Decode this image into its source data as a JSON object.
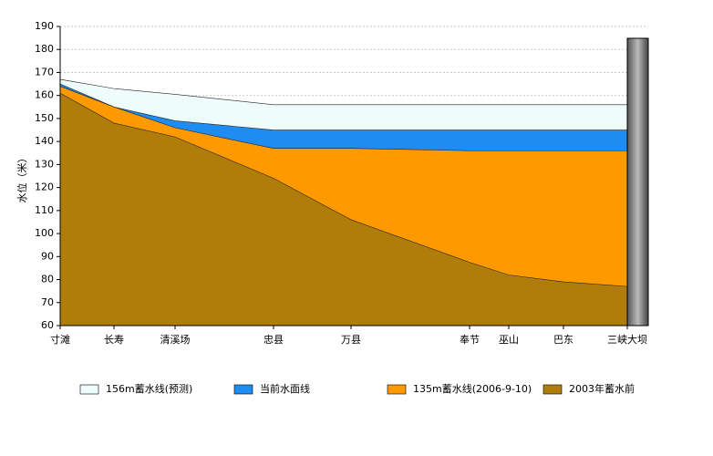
{
  "chart_data": {
    "type": "area",
    "y_label": "水位（米）",
    "categories": [
      "寸滩",
      "长寿",
      "清溪场",
      "忠县",
      "万县",
      "奉节",
      "巫山",
      "巴东",
      "三峡大坝"
    ],
    "series": [
      {
        "name": "156m蓄水线(预测)",
        "color": "#eefcfc",
        "values": [
          167,
          163,
          160.5,
          156,
          156,
          156,
          156,
          156,
          156
        ]
      },
      {
        "name": "当前水面线",
        "color": "#1e8cf0",
        "values": [
          165,
          155,
          149,
          145,
          145,
          145,
          145,
          145,
          145
        ]
      },
      {
        "name": "135m蓄水线(2006-9-10)",
        "color": "#ff9900",
        "values": [
          164,
          155,
          146,
          137,
          137,
          136,
          136,
          136,
          136
        ]
      },
      {
        "name": "2003年蓄水前",
        "color": "#b07d0b",
        "values": [
          161,
          148,
          142,
          124,
          106,
          87.5,
          82,
          79,
          77
        ]
      }
    ],
    "ylim": [
      60,
      190
    ],
    "yticks": [
      60,
      70,
      80,
      90,
      100,
      110,
      120,
      130,
      140,
      150,
      160,
      170,
      180,
      190
    ],
    "grid": true
  }
}
